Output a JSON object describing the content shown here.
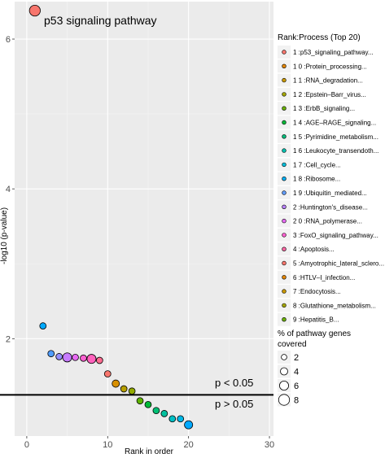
{
  "chart_data": {
    "type": "scatter",
    "xlabel": "Rank in order",
    "ylabel": "-log10 (p-value)",
    "xlim": [
      -1.5,
      30.5
    ],
    "ylim": [
      0.7,
      6.5
    ],
    "x_ticks": [
      0,
      10,
      20,
      30
    ],
    "y_ticks": [
      2,
      4,
      6
    ],
    "grid": true,
    "background": "#ebebeb",
    "threshold": {
      "y": 1.25,
      "label_above": "p < 0.05",
      "label_below": "p > 0.05"
    },
    "highlight_label": "p53 signaling pathway",
    "legend_title": "Rank:Process (Top 20)",
    "legend_entries": [
      {
        "label": "1 :p53_signaling_pathway...",
        "color": "#F8766D"
      },
      {
        "label": "1 0 :Protein_processing...",
        "color": "#E58700"
      },
      {
        "label": "1 1 :RNA_degradation...",
        "color": "#C99800"
      },
      {
        "label": "1 2 :Epstein–Barr_virus...",
        "color": "#A3A500"
      },
      {
        "label": "1 3 :ErbB_signaling...",
        "color": "#6BB100"
      },
      {
        "label": "1 4 :AGE–RAGE_signaling...",
        "color": "#00BA38"
      },
      {
        "label": "1 5 :Pyrimidine_metabolism...",
        "color": "#00BF7D"
      },
      {
        "label": "1 6 :Leukocyte_transendoth...",
        "color": "#00C0AF"
      },
      {
        "label": "1 7 :Cell_cycle...",
        "color": "#00BCD8"
      },
      {
        "label": "1 8 :Ribosome...",
        "color": "#00B0F6"
      },
      {
        "label": "1 9 :Ubiquitin_mediated...",
        "color": "#619CFF"
      },
      {
        "label": "2 :Huntington's_disease...",
        "color": "#B983FF"
      },
      {
        "label": "2 0 :RNA_polymerase...",
        "color": "#E76BF3"
      },
      {
        "label": "3 :FoxO_signaling_pathway...",
        "color": "#FD61D1"
      },
      {
        "label": "4 :Apoptosis...",
        "color": "#FF67A4"
      },
      {
        "label": "5 :Amyotrophic_lateral_sclero...",
        "color": "#F8766D"
      },
      {
        "label": "6 :HTLV–I_infection...",
        "color": "#E58700"
      },
      {
        "label": "7 :Endocytosis...",
        "color": "#C99800"
      },
      {
        "label": "8 :Glutathione_metabolism...",
        "color": "#A3A500"
      },
      {
        "label": "9 :Hepatitis_B...",
        "color": "#6BB100"
      }
    ],
    "size_legend_title": [
      "% of pathway genes",
      "covered"
    ],
    "size_legend": [
      {
        "label": "2",
        "value": 2
      },
      {
        "label": "4",
        "value": 4
      },
      {
        "label": "6",
        "value": 6
      },
      {
        "label": "8",
        "value": 8
      }
    ],
    "points": [
      {
        "rank": 1,
        "y": 6.38,
        "size": 8,
        "color": "#F8766D"
      },
      {
        "rank": 2,
        "y": 2.17,
        "size": 3,
        "color": "#00A9FF"
      },
      {
        "rank": 3,
        "y": 1.8,
        "size": 3,
        "color": "#4F9CFF"
      },
      {
        "rank": 4,
        "y": 1.76,
        "size": 3,
        "color": "#9590FF"
      },
      {
        "rank": 5,
        "y": 1.75,
        "size": 6,
        "color": "#C77CFF"
      },
      {
        "rank": 6,
        "y": 1.75,
        "size": 3,
        "color": "#E76BF3"
      },
      {
        "rank": 7,
        "y": 1.74,
        "size": 3,
        "color": "#FD61D1"
      },
      {
        "rank": 8,
        "y": 1.73,
        "size": 6,
        "color": "#FF62BC"
      },
      {
        "rank": 9,
        "y": 1.71,
        "size": 3,
        "color": "#FF6C91"
      },
      {
        "rank": 10,
        "y": 1.53,
        "size": 3,
        "color": "#F8766D"
      },
      {
        "rank": 11,
        "y": 1.4,
        "size": 4,
        "color": "#D89000"
      },
      {
        "rank": 12,
        "y": 1.33,
        "size": 3,
        "color": "#B79F00"
      },
      {
        "rank": 13,
        "y": 1.3,
        "size": 3,
        "color": "#93AA00"
      },
      {
        "rank": 14,
        "y": 1.17,
        "size": 3,
        "color": "#5EB300"
      },
      {
        "rank": 15,
        "y": 1.12,
        "size": 3,
        "color": "#00BA38"
      },
      {
        "rank": 16,
        "y": 1.04,
        "size": 3,
        "color": "#00BF74"
      },
      {
        "rank": 17,
        "y": 1.0,
        "size": 3,
        "color": "#00C19F"
      },
      {
        "rank": 18,
        "y": 0.93,
        "size": 3,
        "color": "#00BFC4"
      },
      {
        "rank": 19,
        "y": 0.93,
        "size": 3,
        "color": "#00B8E7"
      },
      {
        "rank": 20,
        "y": 0.85,
        "size": 5,
        "color": "#00A9FF"
      }
    ]
  }
}
